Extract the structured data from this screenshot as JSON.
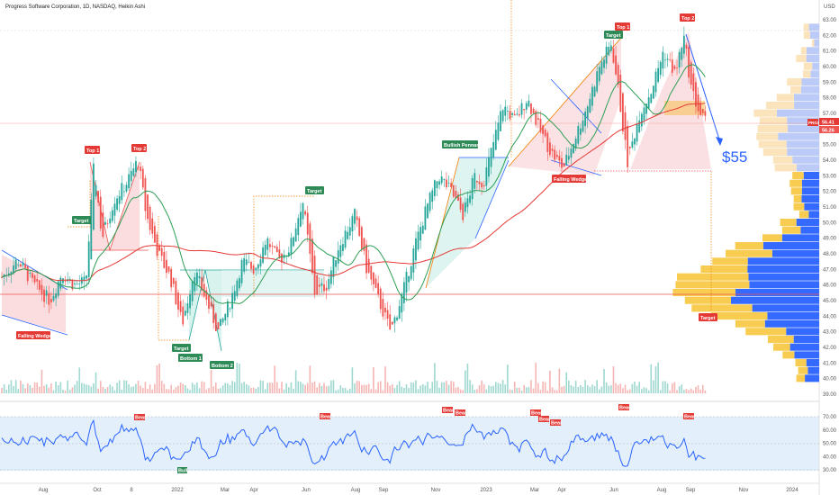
{
  "header": {
    "title": "Progress Software Corporation, 1D, NASDAQ, Heikin Ashi",
    "currency": "USD"
  },
  "price_axis": {
    "ticks": [
      "63.00",
      "62.00",
      "61.00",
      "60.00",
      "59.00",
      "58.00",
      "57.00",
      "56.00",
      "55.00",
      "54.00",
      "53.00",
      "52.00",
      "51.00",
      "50.00",
      "49.00",
      "48.00",
      "47.00",
      "46.00",
      "45.00",
      "44.00",
      "43.00",
      "42.00",
      "41.00",
      "40.00",
      "39.00"
    ],
    "symbol_tag": "PRGS",
    "last_price": "56.41",
    "last_price_2": "56.26"
  },
  "rsi_axis": {
    "ticks": [
      "70.00",
      "60.00",
      "50.00",
      "40.00",
      "30.00"
    ]
  },
  "time_axis": {
    "labels": [
      "Aug",
      "Oct",
      "8",
      "2022",
      "Mar",
      "Apr",
      "Jun",
      "Aug",
      "Sep",
      "Nov",
      "2023",
      "Mar",
      "Apr",
      "Jun",
      "Aug",
      "Sep",
      "Nov",
      "2024"
    ]
  },
  "annotations": {
    "top1_a": "Top 1",
    "top2_a": "Top 2",
    "target_a": "Target",
    "falling_wedge_a": "Falling Wedge",
    "bottom1": "Bottom 1",
    "bottom2": "Bottom 2",
    "target_b": "Target",
    "bullish_pennant": "Bullish Pennant",
    "target_c": "Target",
    "top1_b": "Top 1",
    "top2_b": "Top 2",
    "falling_wedge_b": "Falling Wedge",
    "target_d": "Target",
    "projection": "$55",
    "bear_1": "Bear",
    "bear_2": "Bear",
    "bear_3": "Bear",
    "bear_4": "Bear",
    "bear_5": "Bear",
    "bear_6": "Bear",
    "bear_7": "Bear",
    "bear_8": "Bear",
    "bear_9": "Bear",
    "bull_1": "Bull"
  },
  "colors": {
    "up": "#26a69a",
    "down": "#ef5350",
    "ma_fast": "#2e9e54",
    "ma_slow": "#e53935",
    "rsi": "#2962ff",
    "vp_up": "#2962ff",
    "vp_down": "#f7b731"
  },
  "chart_data": {
    "type": "candlestick",
    "title": "Progress Software Corporation, 1D, NASDAQ, Heikin Ashi",
    "ylim": [
      39,
      63.5
    ],
    "price_path": [
      {
        "t": 0,
        "v": 46.5
      },
      {
        "t": 0.02,
        "v": 47.6
      },
      {
        "t": 0.04,
        "v": 46.0
      },
      {
        "t": 0.06,
        "v": 45.0
      },
      {
        "t": 0.075,
        "v": 46.8
      },
      {
        "t": 0.09,
        "v": 46.0
      },
      {
        "t": 0.105,
        "v": 46.2
      },
      {
        "t": 0.115,
        "v": 53.8
      },
      {
        "t": 0.125,
        "v": 49.0
      },
      {
        "t": 0.14,
        "v": 51.5
      },
      {
        "t": 0.155,
        "v": 52.5
      },
      {
        "t": 0.17,
        "v": 54.0
      },
      {
        "t": 0.18,
        "v": 50.5
      },
      {
        "t": 0.195,
        "v": 48.0
      },
      {
        "t": 0.21,
        "v": 46.5
      },
      {
        "t": 0.225,
        "v": 43.5
      },
      {
        "t": 0.24,
        "v": 47.0
      },
      {
        "t": 0.255,
        "v": 45.0
      },
      {
        "t": 0.27,
        "v": 43.0
      },
      {
        "t": 0.285,
        "v": 45.0
      },
      {
        "t": 0.3,
        "v": 47.5
      },
      {
        "t": 0.315,
        "v": 47.0
      },
      {
        "t": 0.33,
        "v": 49.0
      },
      {
        "t": 0.345,
        "v": 47.5
      },
      {
        "t": 0.36,
        "v": 48.5
      },
      {
        "t": 0.375,
        "v": 51.5
      },
      {
        "t": 0.39,
        "v": 45.5
      },
      {
        "t": 0.405,
        "v": 46.0
      },
      {
        "t": 0.42,
        "v": 48.5
      },
      {
        "t": 0.44,
        "v": 50.5
      },
      {
        "t": 0.455,
        "v": 47.0
      },
      {
        "t": 0.47,
        "v": 45.0
      },
      {
        "t": 0.485,
        "v": 43.0
      },
      {
        "t": 0.5,
        "v": 45.5
      },
      {
        "t": 0.515,
        "v": 48.5
      },
      {
        "t": 0.53,
        "v": 51.0
      },
      {
        "t": 0.545,
        "v": 53.0
      },
      {
        "t": 0.56,
        "v": 52.0
      },
      {
        "t": 0.575,
        "v": 50.5
      },
      {
        "t": 0.59,
        "v": 53.0
      },
      {
        "t": 0.6,
        "v": 52.5
      },
      {
        "t": 0.61,
        "v": 54.5
      },
      {
        "t": 0.625,
        "v": 57.5
      },
      {
        "t": 0.64,
        "v": 56.5
      },
      {
        "t": 0.655,
        "v": 58.0
      },
      {
        "t": 0.67,
        "v": 56.0
      },
      {
        "t": 0.685,
        "v": 54.5
      },
      {
        "t": 0.7,
        "v": 53.5
      },
      {
        "t": 0.715,
        "v": 55.5
      },
      {
        "t": 0.73,
        "v": 57.5
      },
      {
        "t": 0.745,
        "v": 60.0
      },
      {
        "t": 0.76,
        "v": 61.5
      },
      {
        "t": 0.77,
        "v": 58.0
      },
      {
        "t": 0.78,
        "v": 53.8
      },
      {
        "t": 0.795,
        "v": 57.0
      },
      {
        "t": 0.81,
        "v": 58.5
      },
      {
        "t": 0.825,
        "v": 61.0
      },
      {
        "t": 0.84,
        "v": 59.5
      },
      {
        "t": 0.85,
        "v": 62.0
      },
      {
        "t": 0.86,
        "v": 58.5
      },
      {
        "t": 0.87,
        "v": 57.0
      },
      {
        "t": 0.88,
        "v": 56.3
      }
    ],
    "indicators": [
      "moving average (fast)",
      "moving average (slow)",
      "RSI",
      "volume",
      "volume profile"
    ]
  }
}
